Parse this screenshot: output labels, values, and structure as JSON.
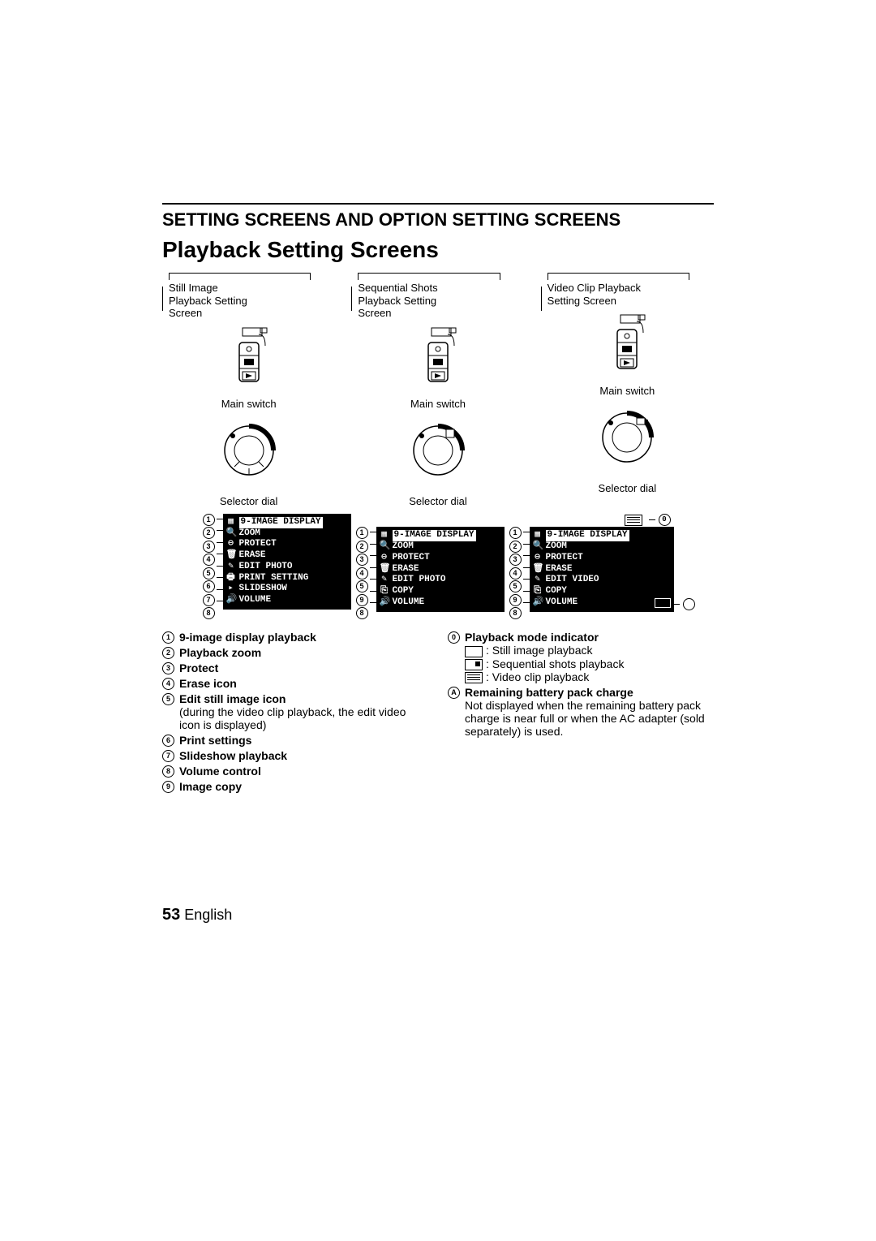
{
  "section_title": "SETTING SCREENS AND OPTION SETTING SCREENS",
  "subsection_title": "Playback Setting Screens",
  "columns": [
    {
      "label": "Still Image\nPlayback Setting\nScreen",
      "caption1": "Main switch",
      "caption2": "Selector dial"
    },
    {
      "label": "Sequential Shots\nPlayback Setting\nScreen",
      "caption1": "Main switch",
      "caption2": "Selector dial"
    },
    {
      "label": "Video Clip Playback\nSetting Screen",
      "caption1": "Main switch",
      "caption2": "Selector dial"
    }
  ],
  "osd": {
    "still": {
      "rows": [
        "9-IMAGE DISPLAY",
        "ZOOM",
        "PROTECT",
        "ERASE",
        "EDIT PHOTO",
        "PRINT SETTING",
        "SLIDESHOW",
        "VOLUME"
      ]
    },
    "seq": {
      "rows": [
        "9-IMAGE DISPLAY",
        "ZOOM",
        "PROTECT",
        "ERASE",
        "EDIT PHOTO",
        "COPY",
        "VOLUME"
      ]
    },
    "vid": {
      "rows": [
        "9-IMAGE DISPLAY",
        "ZOOM",
        "PROTECT",
        "ERASE",
        "EDIT VIDEO",
        "COPY",
        "VOLUME"
      ]
    }
  },
  "legend_left": [
    {
      "n": "1",
      "bold": "9-image display playback"
    },
    {
      "n": "2",
      "bold": "Playback zoom"
    },
    {
      "n": "3",
      "bold": "Protect"
    },
    {
      "n": "4",
      "bold": "Erase icon"
    },
    {
      "n": "5",
      "bold": "Edit still image icon",
      "sub": "(during the video clip playback, the edit video icon is displayed)"
    },
    {
      "n": "6",
      "bold": "Print settings"
    },
    {
      "n": "7",
      "bold": "Slideshow playback"
    },
    {
      "n": "8",
      "bold": "Volume control"
    },
    {
      "n": "9",
      "bold": "Image copy"
    }
  ],
  "legend_right": [
    {
      "n": "0",
      "bold": "Playback mode indicator",
      "modes": [
        {
          "cls": "",
          "txt": ": Still image playback"
        },
        {
          "cls": "seq",
          "txt": ": Sequential shots playback"
        },
        {
          "cls": "vid",
          "txt": ": Video clip playback"
        }
      ]
    },
    {
      "n": "A",
      "bold": "Remaining battery pack charge",
      "sub": "Not displayed when the remaining battery pack charge is near full or when the AC adapter (sold separately) is used."
    }
  ],
  "page_number": "53",
  "page_lang": "English"
}
